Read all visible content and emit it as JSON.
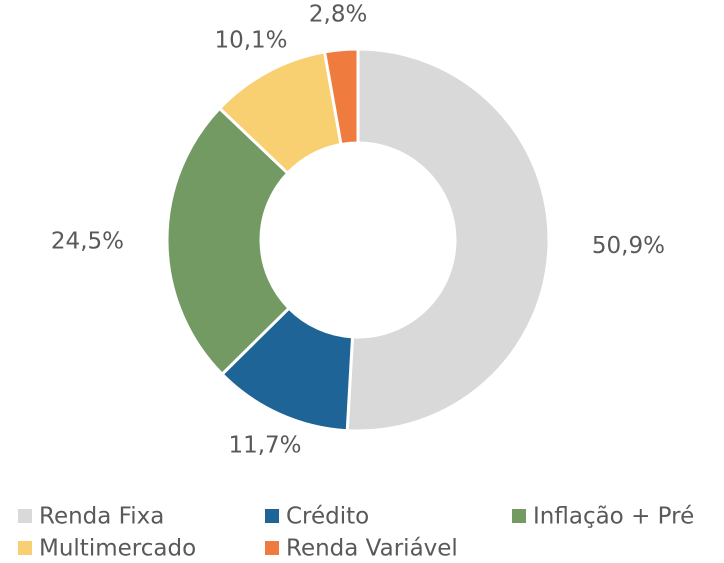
{
  "chart_data": {
    "type": "donut",
    "categories": [
      "Renda Fixa",
      "Crédito",
      "Inflação + Pré",
      "Multimercado",
      "Renda Variável"
    ],
    "values": [
      50.9,
      11.7,
      24.5,
      10.1,
      2.8
    ],
    "value_labels": [
      "50,9%",
      "11,7%",
      "24,5%",
      "10,1%",
      "2,8%"
    ],
    "colors": [
      "#d9d9d9",
      "#1f6496",
      "#739a63",
      "#f9d071",
      "#ef7b3e"
    ],
    "legend": "bottom"
  }
}
